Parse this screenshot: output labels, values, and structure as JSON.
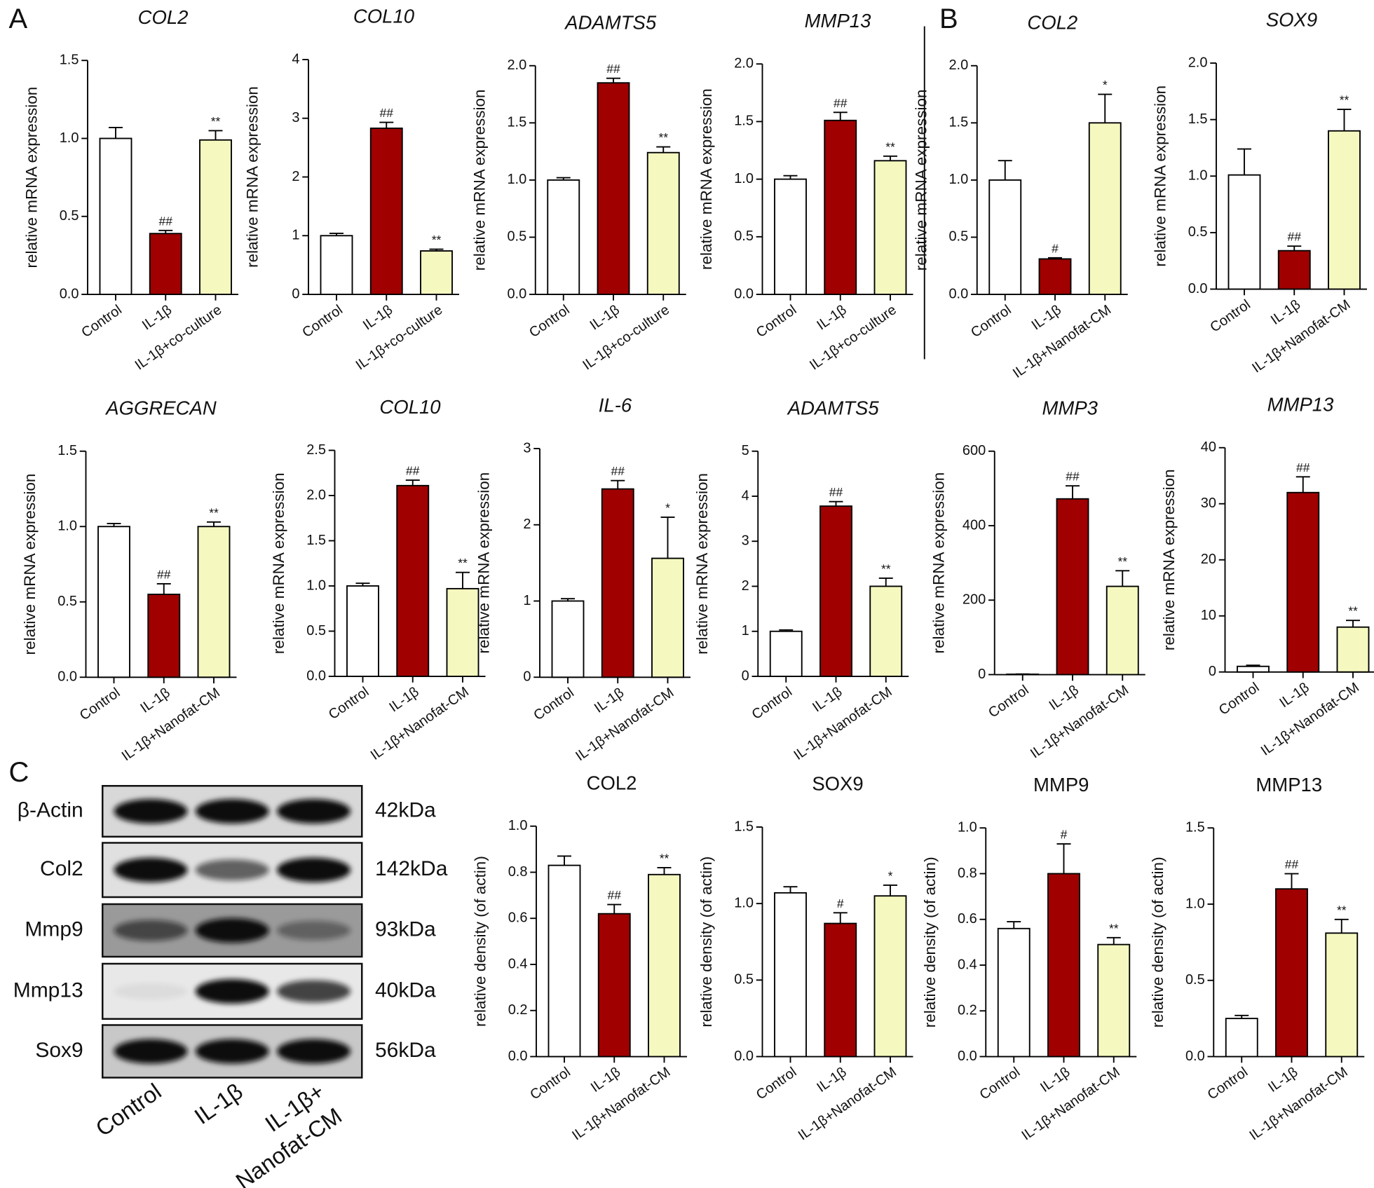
{
  "panel_labels": [
    "A",
    "B",
    "C"
  ],
  "chart_data": [
    {
      "type": "bar",
      "title": "COL2",
      "italic_title": true,
      "ylabel": "relative mRNA expression",
      "categories": [
        "Control",
        "IL-1β",
        "IL-1β+co-culture"
      ],
      "values": [
        1.0,
        0.39,
        0.99
      ],
      "errors": [
        0.07,
        0.02,
        0.06
      ],
      "annotations": [
        null,
        "##",
        "**"
      ],
      "colors": [
        "#ffffff",
        "#a00000",
        "#f5f9c0"
      ],
      "ylim": [
        0,
        1.5
      ],
      "yticks": [
        {
          "value": 0,
          "label": "0.0"
        },
        0.5,
        {
          "value": 1,
          "label": "1.0"
        },
        1.5
      ]
    },
    {
      "type": "bar",
      "title": "COL10",
      "italic_title": true,
      "ylabel": "relative mRNA expression",
      "categories": [
        "Control",
        "IL-1β",
        "IL-1β+co-culture"
      ],
      "values": [
        1.0,
        2.83,
        0.74
      ],
      "errors": [
        0.04,
        0.1,
        0.03
      ],
      "annotations": [
        null,
        "##",
        "**"
      ],
      "colors": [
        "#ffffff",
        "#a00000",
        "#f5f9c0"
      ],
      "ylim": [
        0,
        4
      ],
      "yticks": [
        0,
        1,
        2,
        3,
        4
      ]
    },
    {
      "type": "bar",
      "title": "ADAMTS5",
      "italic_title": true,
      "ylabel": "relative mRNA expression",
      "categories": [
        "Control",
        "IL-1β",
        "IL-1β+co-culture"
      ],
      "values": [
        1.0,
        1.85,
        1.24
      ],
      "errors": [
        0.02,
        0.04,
        0.05
      ],
      "annotations": [
        null,
        "##",
        "**"
      ],
      "colors": [
        "#ffffff",
        "#a00000",
        "#f5f9c0"
      ],
      "ylim": [
        0,
        2
      ],
      "yticks": [
        {
          "value": 0,
          "label": "0.0"
        },
        0.5,
        {
          "value": 1,
          "label": "1.0"
        },
        1.5,
        {
          "value": 2,
          "label": "2.0"
        }
      ]
    },
    {
      "type": "bar",
      "title": "MMP13",
      "italic_title": true,
      "ylabel": "relative mRNA expression",
      "categories": [
        "Control",
        "IL-1β",
        "IL-1β+co-culture"
      ],
      "values": [
        1.0,
        1.51,
        1.16
      ],
      "errors": [
        0.03,
        0.07,
        0.04
      ],
      "annotations": [
        null,
        "##",
        "**"
      ],
      "colors": [
        "#ffffff",
        "#a00000",
        "#f5f9c0"
      ],
      "ylim": [
        0,
        2
      ],
      "yticks": [
        {
          "value": 0,
          "label": "0.0"
        },
        0.5,
        {
          "value": 1,
          "label": "1.0"
        },
        1.5,
        {
          "value": 2,
          "label": "2.0"
        }
      ]
    },
    {
      "type": "bar",
      "title": "COL2",
      "italic_title": true,
      "ylabel": "relative mRNA expression",
      "categories": [
        "Control",
        "IL-1β",
        "IL-1β+Nanofat-CM"
      ],
      "values": [
        1.0,
        0.31,
        1.5
      ],
      "errors": [
        0.17,
        0.01,
        0.25
      ],
      "annotations": [
        null,
        "#",
        "*"
      ],
      "colors": [
        "#ffffff",
        "#a00000",
        "#f5f9c0"
      ],
      "ylim": [
        0,
        2
      ],
      "yticks": [
        {
          "value": 0,
          "label": "0.0"
        },
        0.5,
        {
          "value": 1,
          "label": "1.0"
        },
        1.5,
        {
          "value": 2,
          "label": "2.0"
        }
      ]
    },
    {
      "type": "bar",
      "title": "SOX9",
      "italic_title": true,
      "ylabel": "relative mRNA expression",
      "categories": [
        "Control",
        "IL-1β",
        "IL-1β+Nanofat-CM"
      ],
      "values": [
        1.01,
        0.34,
        1.4
      ],
      "errors": [
        0.23,
        0.04,
        0.19
      ],
      "annotations": [
        null,
        "##",
        "**"
      ],
      "colors": [
        "#ffffff",
        "#a00000",
        "#f5f9c0"
      ],
      "ylim": [
        0,
        2
      ],
      "yticks": [
        {
          "value": 0,
          "label": "0.0"
        },
        0.5,
        {
          "value": 1,
          "label": "1.0"
        },
        1.5,
        {
          "value": 2,
          "label": "2.0"
        }
      ]
    },
    {
      "type": "bar",
      "title": "AGGRECAN",
      "italic_title": true,
      "ylabel": "relative mRNA expression",
      "categories": [
        "Control",
        "IL-1β",
        "IL-1β+Nanofat-CM"
      ],
      "values": [
        1.0,
        0.55,
        1.0
      ],
      "errors": [
        0.02,
        0.07,
        0.03
      ],
      "annotations": [
        null,
        "##",
        "**"
      ],
      "colors": [
        "#ffffff",
        "#a00000",
        "#f5f9c0"
      ],
      "ylim": [
        0,
        1.5
      ],
      "yticks": [
        {
          "value": 0,
          "label": "0.0"
        },
        0.5,
        {
          "value": 1,
          "label": "1.0"
        },
        1.5
      ]
    },
    {
      "type": "bar",
      "title": "COL10",
      "italic_title": true,
      "ylabel": "relative mRNA expression",
      "categories": [
        "Control",
        "IL-1β",
        "IL-1β+Nanofat-CM"
      ],
      "values": [
        1.0,
        2.11,
        0.97
      ],
      "errors": [
        0.03,
        0.06,
        0.18
      ],
      "annotations": [
        null,
        "##",
        "**"
      ],
      "colors": [
        "#ffffff",
        "#a00000",
        "#f5f9c0"
      ],
      "ylim": [
        0,
        2.5
      ],
      "yticks": [
        {
          "value": 0,
          "label": "0.0"
        },
        0.5,
        {
          "value": 1,
          "label": "1.0"
        },
        1.5,
        {
          "value": 2,
          "label": "2.0"
        },
        2.5
      ]
    },
    {
      "type": "bar",
      "title": "IL-6",
      "italic_title": true,
      "ylabel": "relative mRNA expression",
      "categories": [
        "Control",
        "IL-1β",
        "IL-1β+Nanofat-CM"
      ],
      "values": [
        1.0,
        2.47,
        1.56
      ],
      "errors": [
        0.03,
        0.11,
        0.54
      ],
      "annotations": [
        null,
        "##",
        "*"
      ],
      "colors": [
        "#ffffff",
        "#a00000",
        "#f5f9c0"
      ],
      "ylim": [
        0,
        3
      ],
      "yticks": [
        0,
        1,
        2,
        3
      ]
    },
    {
      "type": "bar",
      "title": "ADAMTS5",
      "italic_title": true,
      "ylabel": "relative mRNA expression",
      "categories": [
        "Control",
        "IL-1β",
        "IL-1β+Nanofat-CM"
      ],
      "values": [
        1.0,
        3.78,
        2.0
      ],
      "errors": [
        0.03,
        0.1,
        0.18
      ],
      "annotations": [
        null,
        "##",
        "**"
      ],
      "colors": [
        "#ffffff",
        "#a00000",
        "#f5f9c0"
      ],
      "ylim": [
        0,
        5
      ],
      "yticks": [
        0,
        1,
        2,
        3,
        4,
        5
      ]
    },
    {
      "type": "bar",
      "title": "MMP3",
      "italic_title": true,
      "ylabel": "relative mRNA expression",
      "categories": [
        "Control",
        "IL-1β",
        "IL-1β+Nanofat-CM"
      ],
      "values": [
        1,
        472,
        237
      ],
      "errors": [
        0.5,
        35,
        42
      ],
      "annotations": [
        null,
        "##",
        "**"
      ],
      "colors": [
        "#ffffff",
        "#a00000",
        "#f5f9c0"
      ],
      "ylim": [
        0,
        600
      ],
      "yticks": [
        0,
        200,
        400,
        600
      ]
    },
    {
      "type": "bar",
      "title": "MMP13",
      "italic_title": true,
      "ylabel": "relative mRNA expression",
      "categories": [
        "Control",
        "IL-1β",
        "IL-1β+Nanofat-CM"
      ],
      "values": [
        1,
        32,
        8
      ],
      "errors": [
        0.2,
        2.8,
        1.2
      ],
      "annotations": [
        null,
        "##",
        "**"
      ],
      "colors": [
        "#ffffff",
        "#a00000",
        "#f5f9c0"
      ],
      "ylim": [
        0,
        40
      ],
      "yticks": [
        0,
        10,
        20,
        30,
        40
      ]
    },
    {
      "type": "bar",
      "title": "COL2",
      "italic_title": false,
      "ylabel": "relative density (of actin)",
      "categories": [
        "Control",
        "IL-1β",
        "IL-1β+Nanofat-CM"
      ],
      "values": [
        0.83,
        0.62,
        0.79
      ],
      "errors": [
        0.04,
        0.04,
        0.03
      ],
      "annotations": [
        null,
        "##",
        "**"
      ],
      "colors": [
        "#ffffff",
        "#a00000",
        "#f5f9c0"
      ],
      "ylim": [
        0,
        1
      ],
      "yticks": [
        {
          "value": 0,
          "label": "0.0"
        },
        0.2,
        0.4,
        0.6,
        0.8,
        {
          "value": 1,
          "label": "1.0"
        }
      ]
    },
    {
      "type": "bar",
      "title": "SOX9",
      "italic_title": false,
      "ylabel": "relative density (of actin)",
      "categories": [
        "Control",
        "IL-1β",
        "IL-1β+Nanofat-CM"
      ],
      "values": [
        1.07,
        0.87,
        1.05
      ],
      "errors": [
        0.04,
        0.07,
        0.07
      ],
      "annotations": [
        null,
        "#",
        "*"
      ],
      "colors": [
        "#ffffff",
        "#a00000",
        "#f5f9c0"
      ],
      "ylim": [
        0,
        1.5
      ],
      "yticks": [
        {
          "value": 0,
          "label": "0.0"
        },
        0.5,
        {
          "value": 1,
          "label": "1.0"
        },
        1.5
      ]
    },
    {
      "type": "bar",
      "title": "MMP9",
      "italic_title": false,
      "ylabel": "relative density (of actin)",
      "categories": [
        "Control",
        "IL-1β",
        "IL-1β+Nanofat-CM"
      ],
      "values": [
        0.56,
        0.8,
        0.49
      ],
      "errors": [
        0.03,
        0.13,
        0.03
      ],
      "annotations": [
        null,
        "#",
        "**"
      ],
      "colors": [
        "#ffffff",
        "#a00000",
        "#f5f9c0"
      ],
      "ylim": [
        0,
        1
      ],
      "yticks": [
        {
          "value": 0,
          "label": "0.0"
        },
        0.2,
        0.4,
        0.6,
        0.8,
        {
          "value": 1,
          "label": "1.0"
        }
      ]
    },
    {
      "type": "bar",
      "title": "MMP13",
      "italic_title": false,
      "ylabel": "relative density (of actin)",
      "categories": [
        "Control",
        "IL-1β",
        "IL-1β+Nanofat-CM"
      ],
      "values": [
        0.25,
        1.1,
        0.81
      ],
      "errors": [
        0.02,
        0.1,
        0.09
      ],
      "annotations": [
        null,
        "##",
        "**"
      ],
      "colors": [
        "#ffffff",
        "#a00000",
        "#f5f9c0"
      ],
      "ylim": [
        0,
        1.5
      ],
      "yticks": [
        {
          "value": 0,
          "label": "0.0"
        },
        0.5,
        {
          "value": 1,
          "label": "1.0"
        },
        1.5
      ]
    }
  ],
  "blot": {
    "rows": [
      {
        "name": "β-Actin",
        "size": "42kDa"
      },
      {
        "name": "Col2",
        "size": "142kDa"
      },
      {
        "name": "Mmp9",
        "size": "93kDa"
      },
      {
        "name": "Mmp13",
        "size": "40kDa"
      },
      {
        "name": "Sox9",
        "size": "56kDa"
      }
    ],
    "lanes": [
      [
        "Control"
      ],
      [
        "IL-1β"
      ],
      [
        "IL-1β+",
        "Nanofat-CM"
      ]
    ]
  }
}
